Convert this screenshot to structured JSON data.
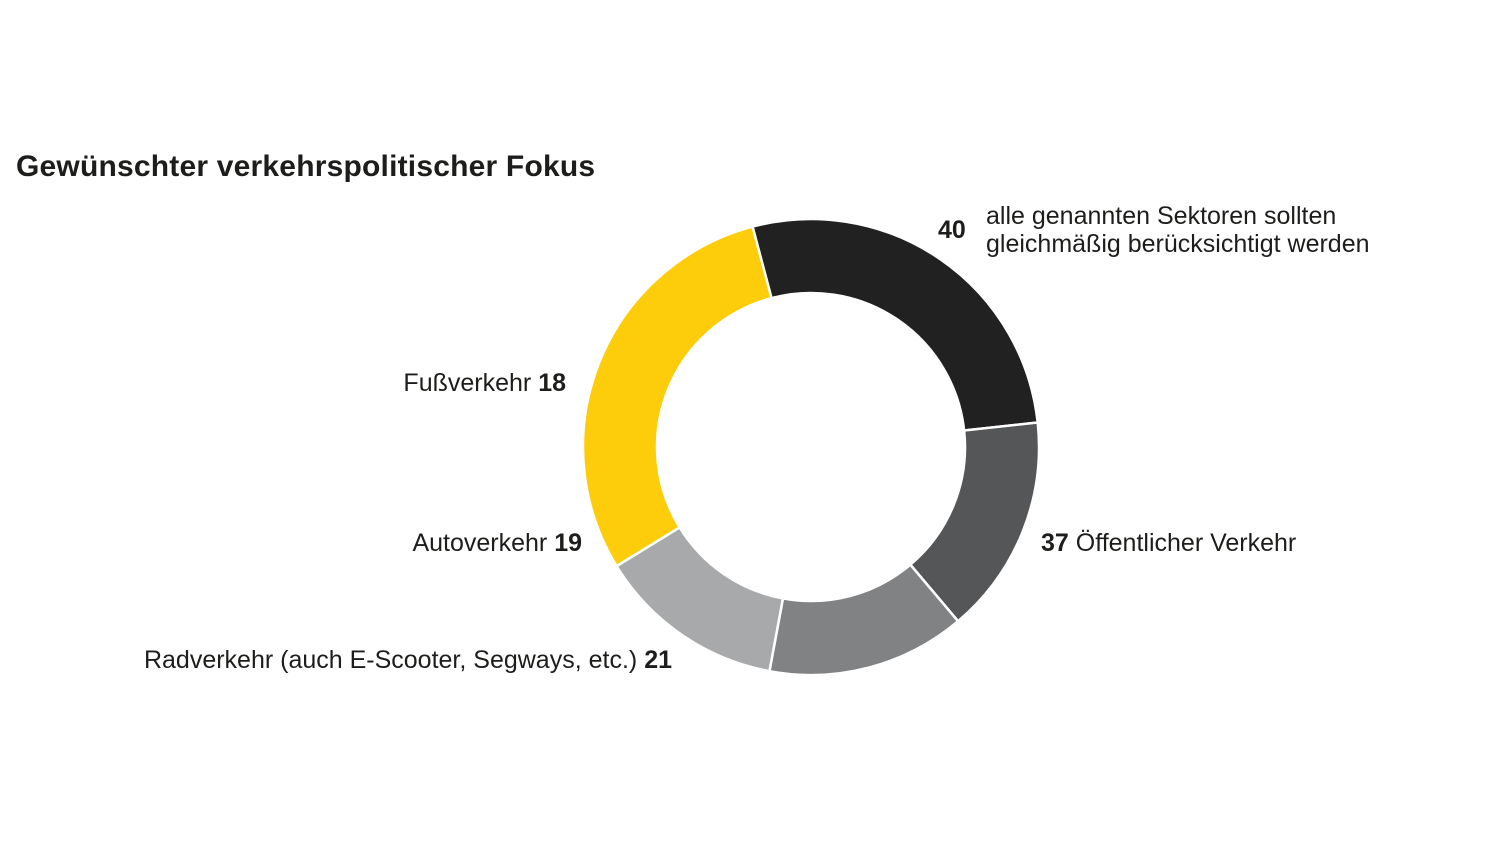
{
  "chart_data": {
    "type": "donut",
    "title": "Gewünschter verkehrspolitischer Fokus",
    "segments": [
      {
        "name": "alle genannten Sektoren sollten\ngleichmäßig berücksichtigt werden",
        "value": 40,
        "color": "#fdcc0a"
      },
      {
        "name": "Öffentlicher Verkehr",
        "value": 37,
        "color": "#222122"
      },
      {
        "name": "Radverkehr (auch E-Scooter, Segways, etc.)",
        "value": 21,
        "color": "#555657"
      },
      {
        "name": "Autoverkehr",
        "value": 19,
        "color": "#818283"
      },
      {
        "name": "Fußverkehr",
        "value": 18,
        "color": "#a8a9aa"
      }
    ]
  },
  "labels": {
    "sectors_value": "40",
    "sectors_text": "alle genannten Sektoren sollten\ngleichmäßig berücksichtigt werden",
    "oev_value": "37",
    "oev_text": " Öffentlicher Verkehr",
    "rad_text": "Radverkehr (auch E-Scooter, Segways, etc.) ",
    "rad_value": "21",
    "auto_text": "Autoverkehr ",
    "auto_value": "19",
    "fuss_text": "Fußverkehr ",
    "fuss_value": "18"
  }
}
